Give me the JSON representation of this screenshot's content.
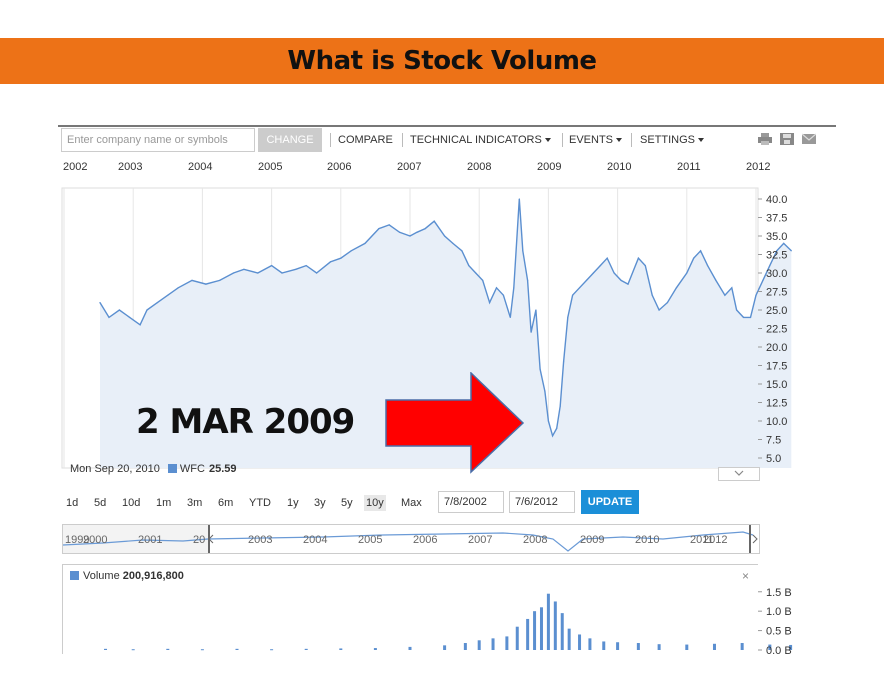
{
  "slide": {
    "title": "What is Stock Volume",
    "callout": "2 MAR 2009"
  },
  "toolbar": {
    "search_placeholder": "Enter company name or symbols",
    "change_label": "CHANGE",
    "compare_label": "COMPARE",
    "technical_label": "TECHNICAL INDICATORS",
    "events_label": "EVENTS",
    "settings_label": "SETTINGS",
    "icons": [
      "print-icon",
      "save-icon",
      "email-icon"
    ]
  },
  "main_chart": {
    "top_years": [
      "2002",
      "2003",
      "2004",
      "2005",
      "2006",
      "2007",
      "2008",
      "2009",
      "2010",
      "2011",
      "2012"
    ],
    "readout_date": "Mon Sep 20, 2010",
    "readout_symbol": "WFC",
    "readout_value": "25.59"
  },
  "range": {
    "buttons": [
      "1d",
      "5d",
      "10d",
      "1m",
      "3m",
      "6m",
      "YTD",
      "1y",
      "3y",
      "5y",
      "10y",
      "Max"
    ],
    "active": "10y",
    "start_date": "7/8/2002",
    "end_date": "7/6/2012",
    "update_label": "UPDATE"
  },
  "navigator": {
    "labels": [
      "1999",
      "2000",
      "2001",
      "20",
      "2003",
      "2004",
      "2005",
      "2006",
      "2007",
      "2008",
      "2009",
      "2010",
      "2011",
      "2012"
    ]
  },
  "volume": {
    "label": "Volume",
    "value": "200,916,800",
    "close_label": "×",
    "axis": [
      "1.5 B",
      "1.0 B",
      "0.5 B",
      "0.0 B"
    ]
  },
  "colors": {
    "banner": "#ed7217",
    "line": "#5b8fd0",
    "fill": "#e8eff8",
    "arrow": "#ff0000",
    "update": "#1b8fd8"
  },
  "chart_data": [
    {
      "type": "area",
      "title": "",
      "xlabel": "",
      "ylabel": "",
      "ylim": [
        5.0,
        40.0
      ],
      "yticks": [
        "40.0",
        "37.5",
        "35.0",
        "32.5",
        "30.0",
        "27.5",
        "25.0",
        "22.5",
        "20.0",
        "17.5",
        "15.0",
        "12.5",
        "10.0",
        "7.5",
        "5.0"
      ],
      "x": [
        2002.52,
        2002.65,
        2002.8,
        2002.95,
        2003.1,
        2003.2,
        2003.35,
        2003.5,
        2003.65,
        2003.85,
        2004.05,
        2004.25,
        2004.45,
        2004.6,
        2004.8,
        2005.0,
        2005.15,
        2005.35,
        2005.5,
        2005.65,
        2005.85,
        2006.0,
        2006.15,
        2006.35,
        2006.55,
        2006.7,
        2006.85,
        2007.0,
        2007.1,
        2007.22,
        2007.35,
        2007.5,
        2007.62,
        2007.75,
        2007.85,
        2007.95,
        2008.05,
        2008.15,
        2008.25,
        2008.35,
        2008.45,
        2008.5,
        2008.58,
        2008.63,
        2008.7,
        2008.75,
        2008.82,
        2008.88,
        2008.95,
        2009.0,
        2009.06,
        2009.12,
        2009.17,
        2009.22,
        2009.28,
        2009.35,
        2009.45,
        2009.55,
        2009.65,
        2009.75,
        2009.85,
        2009.95,
        2010.05,
        2010.15,
        2010.3,
        2010.4,
        2010.5,
        2010.6,
        2010.72,
        2010.85,
        2011.0,
        2011.1,
        2011.2,
        2011.3,
        2011.42,
        2011.55,
        2011.65,
        2011.72,
        2011.82,
        2011.92,
        2012.0,
        2012.1,
        2012.2,
        2012.3,
        2012.4,
        2012.51
      ],
      "series": [
        {
          "values": [
            26,
            24,
            25,
            24,
            23,
            25,
            26,
            27,
            28,
            29,
            28.5,
            29,
            30,
            30.5,
            30,
            31,
            30,
            30.5,
            31,
            30,
            31.5,
            32,
            33,
            34,
            36,
            36.5,
            35.5,
            35,
            35.5,
            36,
            37,
            35,
            34,
            33,
            31,
            30,
            29,
            26,
            28,
            27,
            24,
            28,
            40,
            33,
            29,
            22,
            25,
            17,
            14,
            10,
            8,
            9,
            12,
            18,
            24,
            27,
            28,
            29,
            30,
            31,
            32,
            30,
            29,
            28.5,
            32,
            31,
            27,
            25,
            26,
            28,
            30,
            32,
            33,
            31,
            29,
            27,
            28,
            25,
            24,
            24,
            27,
            29,
            31,
            33,
            34,
            33
          ]
        }
      ]
    },
    {
      "type": "bar",
      "title": "",
      "xlabel": "",
      "ylabel": "",
      "ylim": [
        0,
        1.7
      ],
      "yticks": [
        "1.5 B",
        "1.0 B",
        "0.5 B",
        "0.0 B"
      ],
      "series": [
        {
          "name": "Volume",
          "x": [
            2002.6,
            2003.0,
            2003.5,
            2004.0,
            2004.5,
            2005.0,
            2005.5,
            2006.0,
            2006.5,
            2007.0,
            2007.5,
            2007.8,
            2008.0,
            2008.2,
            2008.4,
            2008.55,
            2008.7,
            2008.8,
            2008.9,
            2009.0,
            2009.1,
            2009.2,
            2009.3,
            2009.45,
            2009.6,
            2009.8,
            2010.0,
            2010.3,
            2010.6,
            2011.0,
            2011.4,
            2011.8,
            2012.2,
            2012.5
          ],
          "values": [
            0.03,
            0.02,
            0.03,
            0.02,
            0.03,
            0.02,
            0.03,
            0.04,
            0.05,
            0.08,
            0.12,
            0.18,
            0.25,
            0.3,
            0.35,
            0.6,
            0.8,
            1.0,
            1.1,
            1.45,
            1.25,
            0.95,
            0.55,
            0.4,
            0.3,
            0.22,
            0.2,
            0.18,
            0.15,
            0.14,
            0.16,
            0.18,
            0.14,
            0.13
          ]
        }
      ]
    }
  ]
}
